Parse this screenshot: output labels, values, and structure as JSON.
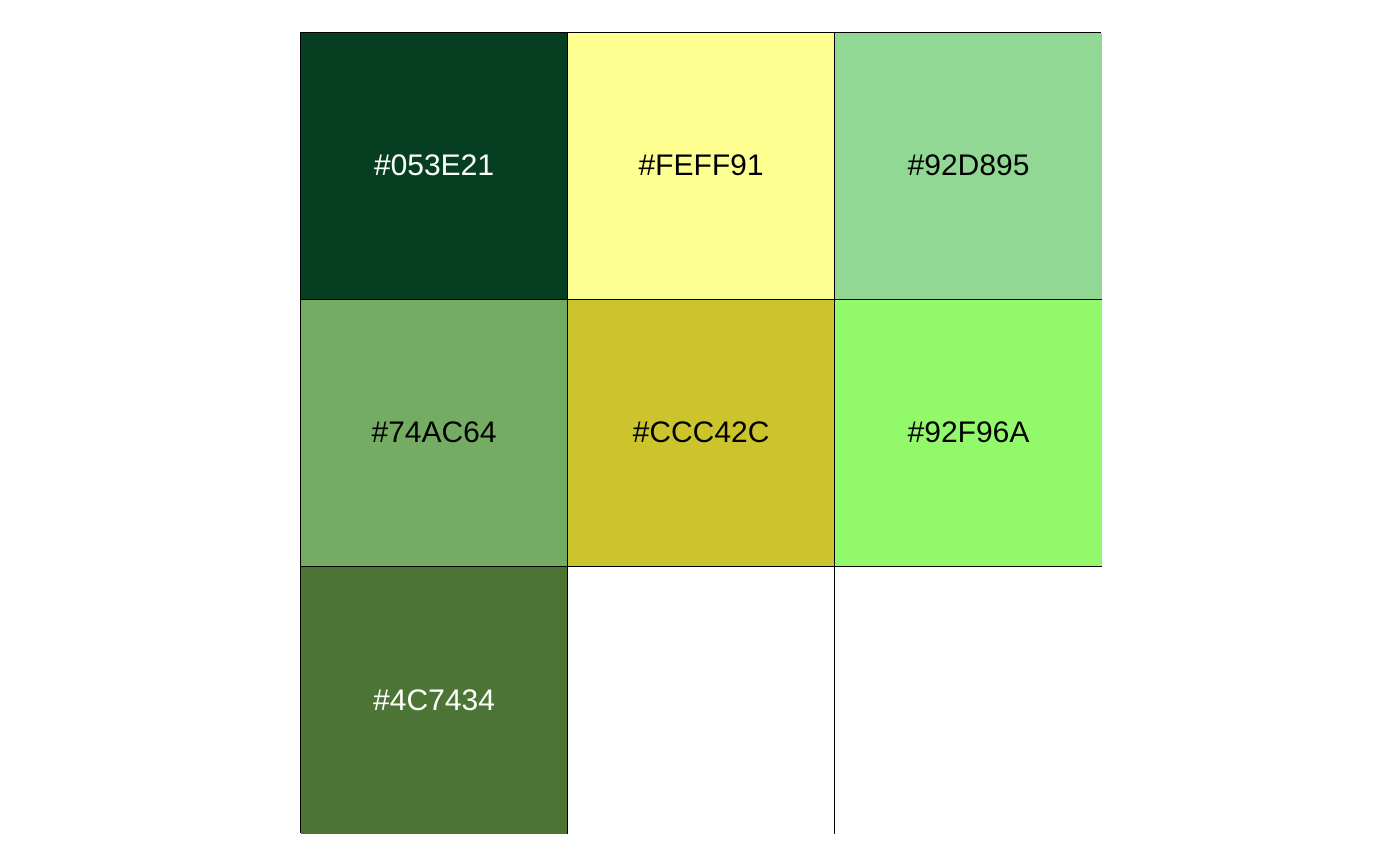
{
  "swatches": [
    {
      "label": "#053E21",
      "fill": "#053E21",
      "text_color": "#FFFFFF"
    },
    {
      "label": "#FEFF91",
      "fill": "#FEFF91",
      "text_color": "#000000"
    },
    {
      "label": "#92D895",
      "fill": "#92D895",
      "text_color": "#000000"
    },
    {
      "label": "#74AC64",
      "fill": "#74AC64",
      "text_color": "#000000"
    },
    {
      "label": "#CCC42C",
      "fill": "#CCC42C",
      "text_color": "#000000"
    },
    {
      "label": "#92F96A",
      "fill": "#92F96A",
      "text_color": "#000000"
    },
    {
      "label": "#4C7434",
      "fill": "#4C7434",
      "text_color": "#FFFFFF"
    },
    {
      "label": "",
      "fill": "#FFFFFF",
      "text_color": "#000000"
    },
    {
      "label": "",
      "fill": "#FFFFFF",
      "text_color": "#000000"
    }
  ]
}
